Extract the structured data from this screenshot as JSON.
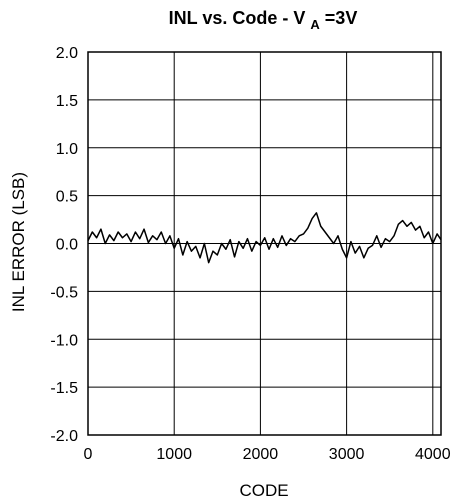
{
  "chart_data": {
    "type": "line",
    "title": {
      "prefix": "INL vs. Code - V",
      "subscript": "A",
      "suffix": "=3V"
    },
    "xlabel": "CODE",
    "ylabel": "INL ERROR (LSB)",
    "xlim": [
      0,
      4095
    ],
    "ylim": [
      -2.0,
      2.0
    ],
    "x_ticks": [
      0,
      1000,
      2000,
      3000,
      4000
    ],
    "x_tick_labels": [
      "0",
      "1000",
      "2000",
      "3000",
      "4000"
    ],
    "y_ticks": [
      2.0,
      1.5,
      1.0,
      0.5,
      0.0,
      -0.5,
      -1.0,
      -1.5,
      -2.0
    ],
    "y_tick_labels": [
      "2.0",
      "1.5",
      "1.0",
      "0.5",
      "0.0",
      "-0.5",
      "-1.0",
      "-1.5",
      "-2.0"
    ],
    "grid": true,
    "line_color": "#000000",
    "series": [
      {
        "x": [
          0,
          50,
          100,
          150,
          200,
          250,
          300,
          350,
          400,
          450,
          500,
          550,
          600,
          650,
          700,
          750,
          800,
          850,
          900,
          950,
          1000,
          1050,
          1100,
          1150,
          1200,
          1250,
          1300,
          1350,
          1400,
          1450,
          1500,
          1550,
          1600,
          1650,
          1700,
          1750,
          1800,
          1850,
          1900,
          1950,
          2000,
          2050,
          2100,
          2150,
          2200,
          2250,
          2300,
          2350,
          2400,
          2450,
          2500,
          2550,
          2600,
          2650,
          2700,
          2750,
          2800,
          2850,
          2900,
          2950,
          3000,
          3050,
          3100,
          3150,
          3200,
          3250,
          3300,
          3350,
          3400,
          3450,
          3500,
          3550,
          3600,
          3650,
          3700,
          3750,
          3800,
          3850,
          3900,
          3950,
          4000,
          4050,
          4095
        ],
        "values": [
          0.03,
          0.12,
          0.06,
          0.15,
          0.0,
          0.09,
          0.03,
          0.12,
          0.06,
          0.1,
          0.02,
          0.12,
          0.05,
          0.15,
          0.01,
          0.08,
          0.04,
          0.12,
          0.0,
          0.08,
          -0.05,
          0.05,
          -0.12,
          0.02,
          -0.08,
          -0.03,
          -0.15,
          0.0,
          -0.2,
          -0.08,
          -0.12,
          0.0,
          -0.06,
          0.04,
          -0.14,
          0.02,
          -0.05,
          0.05,
          -0.08,
          0.02,
          -0.02,
          0.06,
          -0.06,
          0.05,
          -0.04,
          0.08,
          -0.02,
          0.05,
          0.02,
          0.08,
          0.1,
          0.16,
          0.26,
          0.32,
          0.18,
          0.12,
          0.06,
          0.0,
          0.08,
          -0.06,
          -0.15,
          0.02,
          -0.1,
          -0.03,
          -0.15,
          -0.05,
          -0.02,
          0.08,
          -0.04,
          0.05,
          0.02,
          0.08,
          0.2,
          0.24,
          0.18,
          0.22,
          0.14,
          0.18,
          0.06,
          0.12,
          0.0,
          0.1,
          0.04
        ]
      }
    ]
  }
}
